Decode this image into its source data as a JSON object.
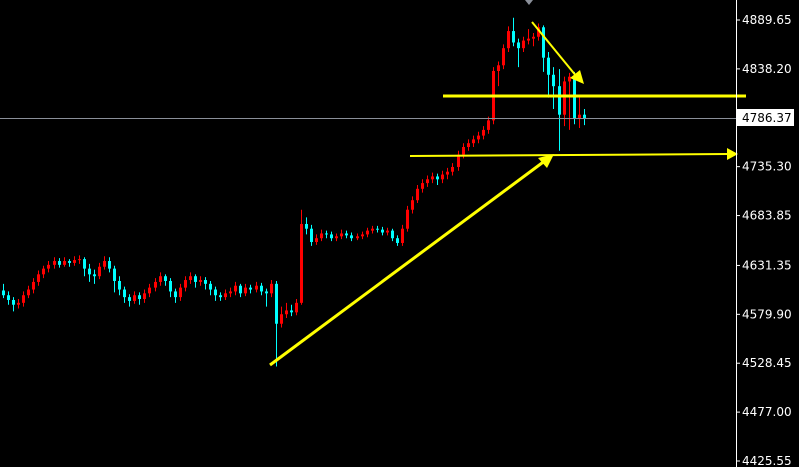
{
  "chart_data": {
    "type": "candlestick",
    "title": "",
    "xlabel": "",
    "ylabel": "",
    "ylim": [
      4425.55,
      4889.65
    ],
    "y_ticks": [
      "4889.65",
      "4838.20",
      "4786.37",
      "4735.30",
      "4683.85",
      "4631.35",
      "4579.90",
      "4528.45",
      "4477.00",
      "4425.55"
    ],
    "current_price": "4786.37",
    "grid": false,
    "colors": {
      "background": "#000000",
      "up": "#ff0000",
      "down": "#00ffff",
      "annotation": "#ffff00",
      "price_line": "#8a8f99",
      "axis": "#ffffff"
    },
    "ohlc_order": [
      "open",
      "high",
      "low",
      "close"
    ],
    "ohlc": [
      [
        4605,
        4612,
        4597,
        4600
      ],
      [
        4600,
        4604,
        4590,
        4595
      ],
      [
        4595,
        4598,
        4583,
        4590
      ],
      [
        4590,
        4596,
        4586,
        4592
      ],
      [
        4592,
        4604,
        4588,
        4600
      ],
      [
        4600,
        4610,
        4597,
        4606
      ],
      [
        4606,
        4618,
        4602,
        4614
      ],
      [
        4614,
        4626,
        4610,
        4622
      ],
      [
        4622,
        4631,
        4618,
        4628
      ],
      [
        4628,
        4636,
        4624,
        4632
      ],
      [
        4632,
        4640,
        4628,
        4636
      ],
      [
        4636,
        4639,
        4629,
        4632
      ],
      [
        4632,
        4640,
        4630,
        4636
      ],
      [
        4636,
        4638,
        4630,
        4634
      ],
      [
        4634,
        4641,
        4631,
        4637
      ],
      [
        4637,
        4642,
        4633,
        4638
      ],
      [
        4638,
        4640,
        4620,
        4628
      ],
      [
        4628,
        4633,
        4614,
        4622
      ],
      [
        4622,
        4627,
        4612,
        4620
      ],
      [
        4620,
        4634,
        4617,
        4630
      ],
      [
        4630,
        4641,
        4627,
        4636
      ],
      [
        4636,
        4640,
        4624,
        4628
      ],
      [
        4628,
        4631,
        4603,
        4615
      ],
      [
        4615,
        4620,
        4600,
        4606
      ],
      [
        4606,
        4609,
        4592,
        4598
      ],
      [
        4598,
        4601,
        4588,
        4594
      ],
      [
        4594,
        4604,
        4591,
        4600
      ],
      [
        4600,
        4603,
        4590,
        4596
      ],
      [
        4596,
        4606,
        4592,
        4602
      ],
      [
        4602,
        4612,
        4598,
        4608
      ],
      [
        4608,
        4618,
        4604,
        4614
      ],
      [
        4614,
        4624,
        4610,
        4620
      ],
      [
        4620,
        4622,
        4610,
        4615
      ],
      [
        4615,
        4618,
        4598,
        4604
      ],
      [
        4604,
        4607,
        4592,
        4598
      ],
      [
        4598,
        4612,
        4594,
        4608
      ],
      [
        4608,
        4620,
        4604,
        4616
      ],
      [
        4616,
        4624,
        4612,
        4620
      ],
      [
        4620,
        4622,
        4608,
        4614
      ],
      [
        4614,
        4620,
        4610,
        4616
      ],
      [
        4616,
        4619,
        4606,
        4612
      ],
      [
        4612,
        4615,
        4600,
        4606
      ],
      [
        4606,
        4609,
        4594,
        4600
      ],
      [
        4600,
        4603,
        4594,
        4598
      ],
      [
        4598,
        4606,
        4595,
        4602
      ],
      [
        4602,
        4608,
        4598,
        4604
      ],
      [
        4604,
        4614,
        4600,
        4610
      ],
      [
        4610,
        4612,
        4598,
        4602
      ],
      [
        4602,
        4612,
        4599,
        4608
      ],
      [
        4608,
        4611,
        4602,
        4606
      ],
      [
        4606,
        4614,
        4603,
        4610
      ],
      [
        4610,
        4613,
        4600,
        4604
      ],
      [
        4604,
        4607,
        4588,
        4602
      ],
      [
        4602,
        4616,
        4598,
        4612
      ],
      [
        4612,
        4615,
        4525,
        4570
      ],
      [
        4570,
        4588,
        4566,
        4580
      ],
      [
        4580,
        4592,
        4576,
        4584
      ],
      [
        4584,
        4590,
        4578,
        4582
      ],
      [
        4582,
        4596,
        4579,
        4592
      ],
      [
        4592,
        4690,
        4590,
        4675
      ],
      [
        4675,
        4682,
        4664,
        4670
      ],
      [
        4670,
        4674,
        4652,
        4656
      ],
      [
        4656,
        4664,
        4653,
        4660
      ],
      [
        4660,
        4669,
        4657,
        4665
      ],
      [
        4665,
        4668,
        4660,
        4664
      ],
      [
        4664,
        4667,
        4657,
        4660
      ],
      [
        4660,
        4665,
        4657,
        4662
      ],
      [
        4662,
        4669,
        4659,
        4665
      ],
      [
        4665,
        4668,
        4660,
        4663
      ],
      [
        4663,
        4666,
        4657,
        4660
      ],
      [
        4660,
        4665,
        4658,
        4662
      ],
      [
        4662,
        4667,
        4659,
        4664
      ],
      [
        4664,
        4671,
        4661,
        4668
      ],
      [
        4668,
        4673,
        4665,
        4670
      ],
      [
        4670,
        4673,
        4666,
        4669
      ],
      [
        4669,
        4672,
        4663,
        4666
      ],
      [
        4666,
        4671,
        4663,
        4668
      ],
      [
        4668,
        4670,
        4657,
        4660
      ],
      [
        4660,
        4663,
        4652,
        4655
      ],
      [
        4655,
        4674,
        4652,
        4670
      ],
      [
        4670,
        4694,
        4667,
        4690
      ],
      [
        4690,
        4704,
        4686,
        4700
      ],
      [
        4700,
        4716,
        4697,
        4712
      ],
      [
        4712,
        4722,
        4708,
        4718
      ],
      [
        4718,
        4726,
        4714,
        4722
      ],
      [
        4722,
        4729,
        4718,
        4725
      ],
      [
        4725,
        4728,
        4716,
        4722
      ],
      [
        4722,
        4731,
        4718,
        4727
      ],
      [
        4727,
        4734,
        4722,
        4730
      ],
      [
        4730,
        4739,
        4726,
        4735
      ],
      [
        4735,
        4752,
        4731,
        4748
      ],
      [
        4748,
        4760,
        4744,
        4756
      ],
      [
        4756,
        4764,
        4752,
        4760
      ],
      [
        4760,
        4768,
        4756,
        4764
      ],
      [
        4764,
        4772,
        4760,
        4768
      ],
      [
        4768,
        4778,
        4764,
        4774
      ],
      [
        4774,
        4788,
        4770,
        4784
      ],
      [
        4784,
        4840,
        4780,
        4836
      ],
      [
        4836,
        4846,
        4820,
        4842
      ],
      [
        4842,
        4864,
        4838,
        4860
      ],
      [
        4860,
        4883,
        4856,
        4878
      ],
      [
        4878,
        4892,
        4862,
        4866
      ],
      [
        4866,
        4870,
        4840,
        4860
      ],
      [
        4860,
        4872,
        4856,
        4868
      ],
      [
        4868,
        4880,
        4864,
        4870
      ],
      [
        4870,
        4876,
        4862,
        4872
      ],
      [
        4872,
        4886,
        4868,
        4882
      ],
      [
        4882,
        4884,
        4835,
        4850
      ],
      [
        4850,
        4856,
        4808,
        4832
      ],
      [
        4832,
        4840,
        4796,
        4820
      ],
      [
        4820,
        4838,
        4752,
        4790
      ],
      [
        4790,
        4830,
        4778,
        4825
      ],
      [
        4825,
        4834,
        4774,
        4830
      ],
      [
        4830,
        4835,
        4780,
        4786
      ],
      [
        4786,
        4808,
        4776,
        4790
      ],
      [
        4790,
        4796,
        4779,
        4786.37
      ]
    ],
    "annotations": [
      {
        "type": "horizontal-line",
        "price": 4810
      },
      {
        "type": "horizontal-arrow",
        "price": 4748
      },
      {
        "type": "trend-arrow-up",
        "from_price": 4535,
        "to_price": 4748
      },
      {
        "type": "trend-arrow-down",
        "from_price": 4888,
        "to_price": 4826
      }
    ]
  }
}
